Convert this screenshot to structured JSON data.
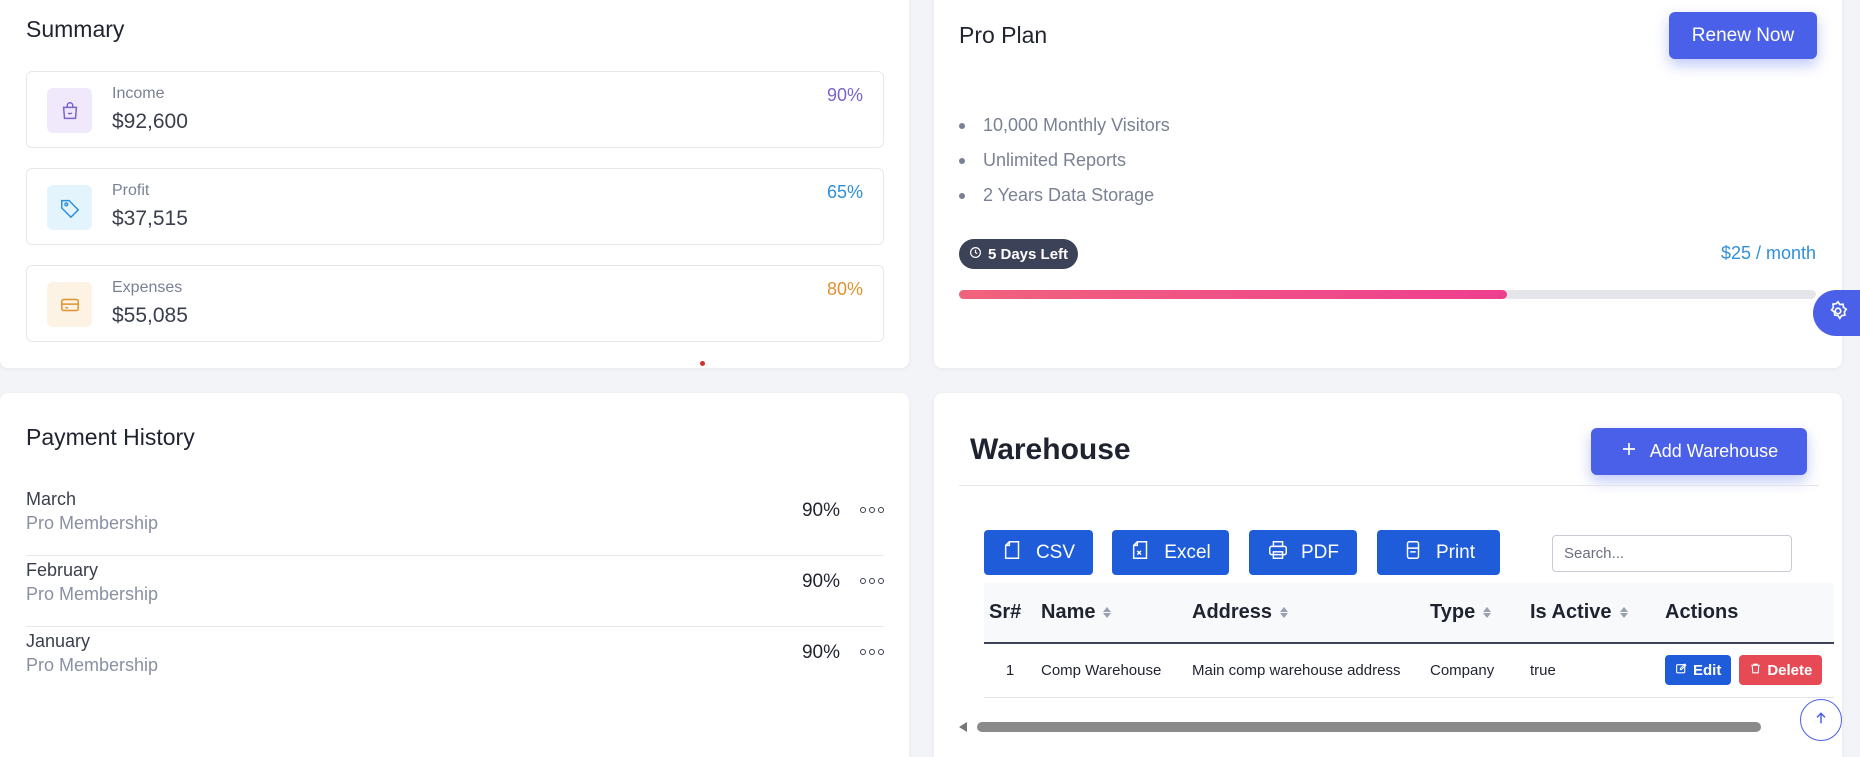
{
  "summary": {
    "title": "Summary",
    "items": [
      {
        "label": "Income",
        "value": "$92,600",
        "percent": "90%",
        "color": "#7b63c9",
        "icon_bg": "#efe9fb",
        "icon": "shopping-bag-icon"
      },
      {
        "label": "Profit",
        "value": "$37,515",
        "percent": "65%",
        "color": "#2f8fd8",
        "icon_bg": "#e4f4fc",
        "icon": "tag-icon"
      },
      {
        "label": "Expenses",
        "value": "$55,085",
        "percent": "80%",
        "color": "#e0922f",
        "icon_bg": "#fdf3e5",
        "icon": "credit-card-icon"
      }
    ]
  },
  "pro_plan": {
    "title": "Pro Plan",
    "renew_label": "Renew Now",
    "features": [
      "10,000 Monthly Visitors",
      "Unlimited Reports",
      "2 Years Data Storage"
    ],
    "days_left": "5 Days Left",
    "price": "$25 / month",
    "progress": 0.64
  },
  "payment_history": {
    "title": "Payment History",
    "rows": [
      {
        "month": "March",
        "plan": "Pro Membership",
        "percent": "90%"
      },
      {
        "month": "February",
        "plan": "Pro Membership",
        "percent": "90%"
      },
      {
        "month": "January",
        "plan": "Pro Membership",
        "percent": "90%"
      }
    ]
  },
  "warehouse": {
    "title": "Warehouse",
    "add_label": "Add Warehouse",
    "export_buttons": [
      "CSV",
      "Excel",
      "PDF",
      "Print"
    ],
    "search_placeholder": "Search...",
    "columns": [
      "Sr#",
      "Name",
      "Address",
      "Type",
      "Is Active",
      "Actions"
    ],
    "rows": [
      {
        "sr": "1",
        "name": "Comp Warehouse",
        "address": "Main comp warehouse address",
        "type": "Company",
        "is_active": "true"
      }
    ],
    "edit_label": "Edit",
    "delete_label": "Delete"
  },
  "colors": {
    "primary": "#4a60e8",
    "button_blue": "#1f5cd9",
    "danger": "#e64b55"
  }
}
